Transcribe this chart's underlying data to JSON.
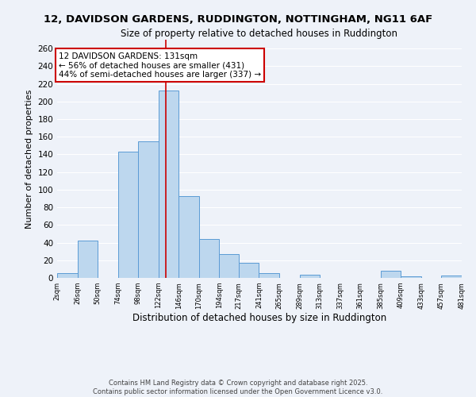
{
  "title": "12, DAVIDSON GARDENS, RUDDINGTON, NOTTINGHAM, NG11 6AF",
  "subtitle": "Size of property relative to detached houses in Ruddington",
  "xlabel": "Distribution of detached houses by size in Ruddington",
  "ylabel": "Number of detached properties",
  "bins": [
    2,
    26,
    50,
    74,
    98,
    122,
    146,
    170,
    194,
    217,
    241,
    265,
    289,
    313,
    337,
    361,
    385,
    409,
    433,
    457,
    481
  ],
  "bin_labels": [
    "2sqm",
    "26sqm",
    "50sqm",
    "74sqm",
    "98sqm",
    "122sqm",
    "146sqm",
    "170sqm",
    "194sqm",
    "217sqm",
    "241sqm",
    "265sqm",
    "289sqm",
    "313sqm",
    "337sqm",
    "361sqm",
    "385sqm",
    "409sqm",
    "433sqm",
    "457sqm",
    "481sqm"
  ],
  "values": [
    5,
    42,
    0,
    143,
    155,
    212,
    93,
    44,
    27,
    17,
    5,
    0,
    4,
    0,
    0,
    0,
    8,
    2,
    0,
    3
  ],
  "bar_color": "#bdd7ee",
  "bar_edge_color": "#5b9bd5",
  "vline_x": 131,
  "vline_color": "#cc0000",
  "annotation_title": "12 DAVIDSON GARDENS: 131sqm",
  "annotation_line1": "← 56% of detached houses are smaller (431)",
  "annotation_line2": "44% of semi-detached houses are larger (337) →",
  "annotation_box_color": "#ffffff",
  "annotation_box_edge_color": "#cc0000",
  "ylim": [
    0,
    270
  ],
  "yticks": [
    0,
    20,
    40,
    60,
    80,
    100,
    120,
    140,
    160,
    180,
    200,
    220,
    240,
    260
  ],
  "footnote1": "Contains HM Land Registry data © Crown copyright and database right 2025.",
  "footnote2": "Contains public sector information licensed under the Open Government Licence v3.0.",
  "bg_color": "#eef2f9",
  "grid_color": "#ffffff"
}
